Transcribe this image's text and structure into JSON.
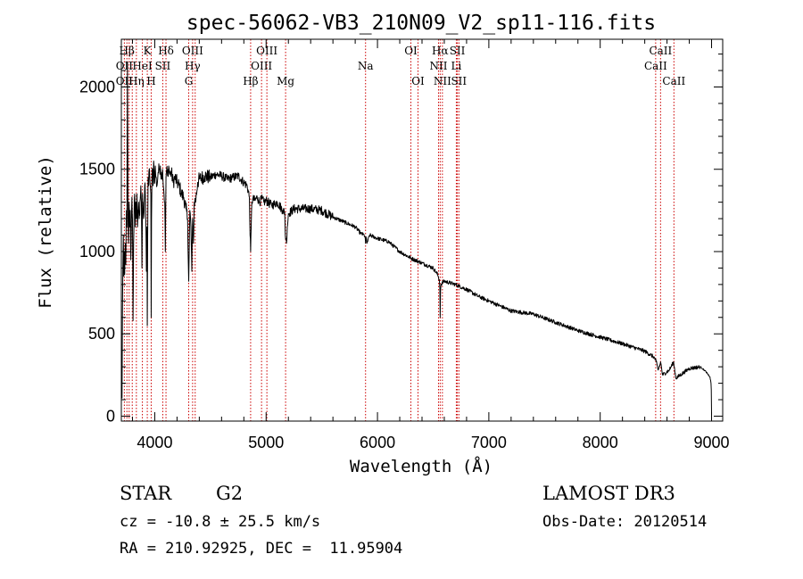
{
  "chart_data": {
    "type": "line",
    "title": "spec-56062-VB3_210N09_V2_sp11-116.fits",
    "xlabel": "Wavelength (Å)",
    "ylabel": "Flux (relative)",
    "xlim": [
      3700,
      9100
    ],
    "ylim": [
      -30,
      2290
    ],
    "x_ticks": [
      4000,
      5000,
      6000,
      7000,
      8000,
      9000
    ],
    "x_tick_labels": [
      "4000",
      "5000",
      "6000",
      "7000",
      "8000",
      "9000"
    ],
    "y_ticks": [
      0,
      500,
      1000,
      1500,
      2000
    ],
    "y_tick_labels": [
      "0",
      "500",
      "1000",
      "1500",
      "2000"
    ],
    "x_minor_step": 200,
    "y_minor_step": 100,
    "grid": false,
    "series": [
      {
        "name": "flux",
        "anchors_x": [
          3700,
          3703,
          3706,
          3710,
          3714,
          3718,
          3722,
          3726,
          3730,
          3735,
          3740,
          3745,
          3750,
          3755,
          3760,
          3765,
          3770,
          3775,
          3780,
          3785,
          3790,
          3795,
          3800,
          3805,
          3810,
          3815,
          3820,
          3825,
          3830,
          3835,
          3840,
          3845,
          3850,
          3855,
          3860,
          3865,
          3870,
          3875,
          3880,
          3885,
          3890,
          3895,
          3900,
          3905,
          3910,
          3915,
          3920,
          3925,
          3930,
          3933,
          3936,
          3940,
          3945,
          3950,
          3955,
          3960,
          3965,
          3968,
          3971,
          3975,
          3980,
          3985,
          3990,
          3995,
          4000,
          4005,
          4010,
          4020,
          4030,
          4040,
          4050,
          4060,
          4070,
          4080,
          4090,
          4095,
          4101,
          4107,
          4115,
          4125,
          4135,
          4150,
          4165,
          4180,
          4200,
          4220,
          4240,
          4260,
          4280,
          4295,
          4305,
          4315,
          4325,
          4333,
          4340,
          4347,
          4355,
          4370,
          4385,
          4400,
          4450,
          4500,
          4550,
          4600,
          4650,
          4700,
          4750,
          4800,
          4830,
          4850,
          4856,
          4861,
          4866,
          4872,
          4880,
          4900,
          4920,
          4940,
          4960,
          4980,
          5000,
          5050,
          5100,
          5150,
          5167,
          5172,
          5178,
          5183,
          5190,
          5200,
          5250,
          5300,
          5400,
          5500,
          5600,
          5700,
          5800,
          5850,
          5880,
          5889,
          5893,
          5897,
          5905,
          5930,
          6000,
          6100,
          6200,
          6300,
          6400,
          6500,
          6540,
          6555,
          6560,
          6563,
          6566,
          6570,
          6580,
          6600,
          6700,
          6800,
          6900,
          7000,
          7200,
          7400,
          7600,
          7800,
          8000,
          8200,
          8400,
          8480,
          8498,
          8503,
          8520,
          8540,
          8542,
          8545,
          8560,
          8620,
          8660,
          8662,
          8665,
          8680,
          8800,
          8900,
          8950,
          8970,
          8985,
          8995,
          9000
        ],
        "anchors_y": [
          200,
          290,
          110,
          650,
          900,
          1100,
          850,
          1000,
          860,
          1050,
          920,
          1250,
          1150,
          2150,
          1200,
          1050,
          1300,
          1150,
          1250,
          950,
          1150,
          1330,
          1200,
          580,
          1050,
          1250,
          1350,
          1150,
          1300,
          1200,
          1350,
          1150,
          1250,
          1300,
          1200,
          1220,
          1320,
          1400,
          1300,
          900,
          1350,
          1300,
          1200,
          1250,
          1400,
          1350,
          1200,
          880,
          1150,
          550,
          1050,
          1450,
          1400,
          1500,
          1450,
          1400,
          1350,
          600,
          1200,
          1450,
          1500,
          1400,
          1550,
          1480,
          1420,
          1520,
          1450,
          1400,
          1480,
          1500,
          1520,
          1450,
          1500,
          1380,
          1300,
          1000,
          1450,
          1500,
          1460,
          1520,
          1470,
          1480,
          1420,
          1450,
          1420,
          1400,
          1350,
          1330,
          1260,
          1200,
          820,
          1250,
          1150,
          880,
          1200,
          1050,
          1300,
          1320,
          1420,
          1440,
          1460,
          1450,
          1470,
          1460,
          1440,
          1450,
          1460,
          1420,
          1400,
          1330,
          1100,
          1000,
          1150,
          1300,
          1320,
          1310,
          1330,
          1300,
          1320,
          1300,
          1310,
          1280,
          1300,
          1250,
          1240,
          1100,
          1080,
          1050,
          1150,
          1230,
          1260,
          1260,
          1260,
          1250,
          1210,
          1180,
          1150,
          1110,
          1100,
          1090,
          1050,
          1090,
          1050,
          1100,
          1080,
          1060,
          1000,
          960,
          930,
          900,
          860,
          830,
          780,
          600,
          760,
          800,
          810,
          820,
          800,
          770,
          730,
          700,
          640,
          620,
          570,
          520,
          480,
          440,
          395,
          360,
          340,
          330,
          280,
          320,
          330,
          320,
          250,
          280,
          330,
          310,
          300,
          230,
          290,
          300,
          270,
          250,
          240,
          200,
          120,
          50,
          10
        ]
      }
    ],
    "line_markers": [
      {
        "label": "Hβ",
        "row": 1,
        "wavelengths": [
          3750
        ]
      },
      {
        "label": "K",
        "row": 1,
        "wavelengths": [
          3933
        ]
      },
      {
        "label": "Hδ",
        "row": 1,
        "wavelengths": [
          4101
        ]
      },
      {
        "label": "OIII",
        "row": 1,
        "wavelengths": [
          4340
        ]
      },
      {
        "label": "OIII",
        "row": 1,
        "wavelengths": [
          5007
        ]
      },
      {
        "label": "OI",
        "row": 1,
        "wavelengths": [
          6300
        ]
      },
      {
        "label": "Hα",
        "row": 1,
        "wavelengths": [
          6563
        ]
      },
      {
        "label": "SII",
        "row": 1,
        "wavelengths": [
          6717
        ]
      },
      {
        "label": "CaII",
        "row": 1,
        "wavelengths": [
          8542
        ]
      },
      {
        "label": "OII",
        "row": 2,
        "wavelengths": [
          3727
        ]
      },
      {
        "label": "HeI",
        "row": 2,
        "wavelengths": [
          3889
        ]
      },
      {
        "label": "SII",
        "row": 2,
        "wavelengths": [
          4072
        ]
      },
      {
        "label": "Hγ",
        "row": 2,
        "wavelengths": [
          4340
        ]
      },
      {
        "label": "OIII",
        "row": 2,
        "wavelengths": [
          4959
        ]
      },
      {
        "label": "Na",
        "row": 2,
        "wavelengths": [
          5893
        ]
      },
      {
        "label": "NII",
        "row": 2,
        "wavelengths": [
          6548
        ]
      },
      {
        "label": "Li",
        "row": 2,
        "wavelengths": [
          6708
        ]
      },
      {
        "label": "CaII",
        "row": 2,
        "wavelengths": [
          8498
        ]
      },
      {
        "label": "OII",
        "row": 3,
        "wavelengths": [
          3727
        ]
      },
      {
        "label": "Hη",
        "row": 3,
        "wavelengths": [
          3835
        ]
      },
      {
        "label": "H",
        "row": 3,
        "wavelengths": [
          3968
        ]
      },
      {
        "label": "G",
        "row": 3,
        "wavelengths": [
          4305
        ]
      },
      {
        "label": "Hβ",
        "row": 3,
        "wavelengths": [
          4861
        ]
      },
      {
        "label": "Mg",
        "row": 3,
        "wavelengths": [
          5175
        ]
      },
      {
        "label": "OI",
        "row": 3,
        "wavelengths": [
          6364
        ]
      },
      {
        "label": "NII",
        "row": 3,
        "wavelengths": [
          6583
        ]
      },
      {
        "label": "SII",
        "row": 3,
        "wavelengths": [
          6731
        ]
      },
      {
        "label": "CaII",
        "row": 3,
        "wavelengths": [
          8662
        ]
      }
    ],
    "marker_line_wavelengths": [
      3727,
      3750,
      3770,
      3798,
      3835,
      3889,
      3933,
      3968,
      4072,
      4101,
      4305,
      4340,
      4363,
      4861,
      4959,
      5007,
      5175,
      5893,
      6300,
      6364,
      6548,
      6563,
      6583,
      6708,
      6717,
      6731,
      8498,
      8542,
      8662
    ],
    "marker_color": "#cc0000"
  },
  "footer": {
    "object_class": "STAR",
    "subclass": "G2",
    "survey": "LAMOST DR3",
    "redshift": "cz = -10.8 ± 25.5 km/s",
    "obs_date": "Obs-Date: 20120514",
    "coords": "RA = 210.92925, DEC =  11.95904"
  }
}
